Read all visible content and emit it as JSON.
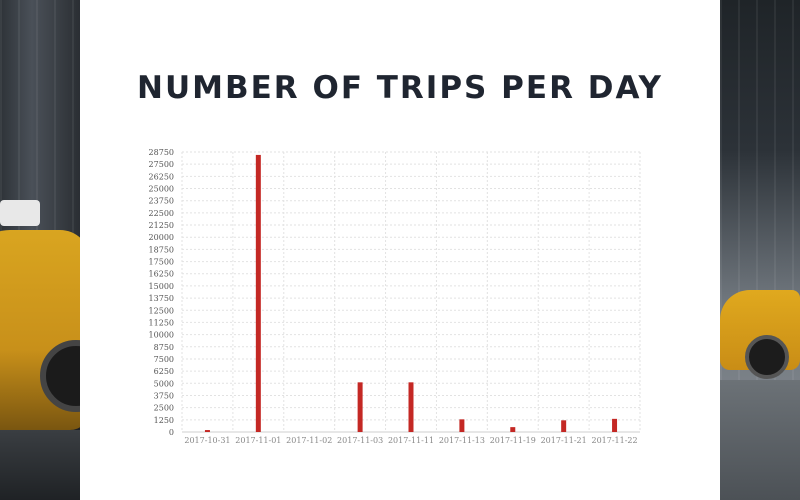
{
  "header": {
    "title": "NUMBER OF TRIPS PER DAY"
  },
  "theme": {
    "bar_color": "#c42824",
    "title_color": "#1f2530",
    "panel_bg": "#ffffff"
  },
  "chart_data": {
    "type": "bar",
    "title": "NUMBER OF TRIPS PER DAY",
    "xlabel": "",
    "ylabel": "",
    "categories": [
      "2017-10-31",
      "2017-11-01",
      "2017-11-02",
      "2017-11-03",
      "2017-11-11",
      "2017-11-13",
      "2017-11-19",
      "2017-11-21",
      "2017-11-22"
    ],
    "bars": [
      {
        "x": "2017-10-31",
        "y": 200
      },
      {
        "x": "2017-11-01",
        "y": 28450
      },
      {
        "x": "2017-11-03",
        "y": 5100
      },
      {
        "x": "2017-11-11",
        "y": 5100
      },
      {
        "x": "2017-11-13",
        "y": 1300
      },
      {
        "x": "2017-11-19",
        "y": 500
      },
      {
        "x": "2017-11-21",
        "y": 1200
      },
      {
        "x": "2017-11-22",
        "y": 1350
      }
    ],
    "ylim": [
      0,
      28750
    ],
    "yticks": [
      0,
      1250,
      2500,
      3750,
      5000,
      6250,
      7500,
      8750,
      10000,
      11250,
      12500,
      13750,
      15000,
      16250,
      17500,
      18750,
      20000,
      21250,
      22500,
      23750,
      25000,
      26250,
      27500,
      28750
    ],
    "grid": true
  }
}
